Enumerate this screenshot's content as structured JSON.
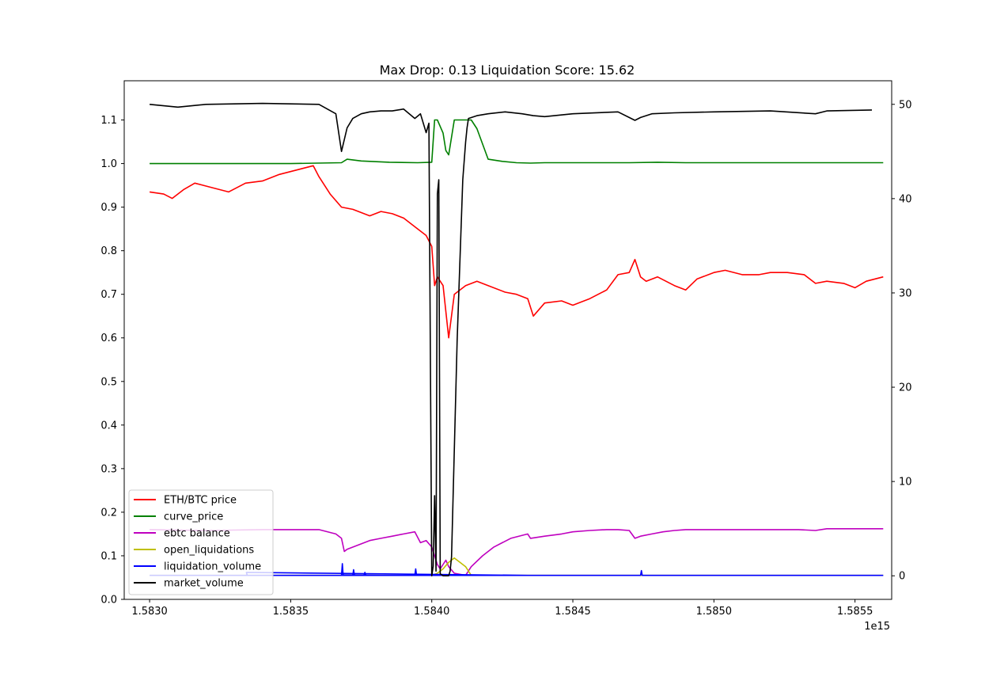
{
  "chart_data": {
    "type": "line",
    "title": "Max Drop: 0.13 Liquidation Score: 15.62",
    "x_offset_label": "1e15",
    "xlim": [
      1.58291,
      1.58563
    ],
    "ylim_left": [
      0.0,
      1.19
    ],
    "ylim_right": [
      -2.5,
      52.5
    ],
    "x_ticks": [
      1.583,
      1.5835,
      1.584,
      1.5845,
      1.585,
      1.5855
    ],
    "x_tick_labels": [
      "1.5830",
      "1.5835",
      "1.5840",
      "1.5845",
      "1.5850",
      "1.5855"
    ],
    "y_left_ticks": [
      0.0,
      0.1,
      0.2,
      0.3,
      0.4,
      0.5,
      0.6,
      0.7,
      0.8,
      0.9,
      1.0,
      1.1
    ],
    "y_left_tick_labels": [
      "0.0",
      "0.1",
      "0.2",
      "0.3",
      "0.4",
      "0.5",
      "0.6",
      "0.7",
      "0.8",
      "0.9",
      "1.0",
      "1.1"
    ],
    "y_right_ticks": [
      0,
      10,
      20,
      30,
      40,
      50
    ],
    "y_right_tick_labels": [
      "0",
      "10",
      "20",
      "30",
      "40",
      "50"
    ],
    "grid": false,
    "legend_position": "lower-left",
    "series": [
      {
        "name": "ETH/BTC price",
        "color": "#ff0000",
        "axis": "left",
        "x": [
          1.583,
          1.58305,
          1.58308,
          1.58312,
          1.58316,
          1.58322,
          1.58328,
          1.58334,
          1.5834,
          1.58346,
          1.58352,
          1.58358,
          1.5836,
          1.58364,
          1.58368,
          1.58372,
          1.58378,
          1.58382,
          1.58386,
          1.5839,
          1.58394,
          1.58398,
          1.584,
          1.58401,
          1.58402,
          1.58404,
          1.58406,
          1.58408,
          1.58412,
          1.58416,
          1.5842,
          1.58426,
          1.5843,
          1.58434,
          1.58436,
          1.5844,
          1.58446,
          1.5845,
          1.58456,
          1.58462,
          1.58466,
          1.5847,
          1.58472,
          1.58474,
          1.58476,
          1.5848,
          1.58486,
          1.5849,
          1.58494,
          1.585,
          1.58504,
          1.5851,
          1.58516,
          1.5852,
          1.58526,
          1.58532,
          1.58536,
          1.5854,
          1.58546,
          1.5855,
          1.58554,
          1.5856
        ],
        "values": [
          0.935,
          0.93,
          0.92,
          0.94,
          0.955,
          0.945,
          0.935,
          0.955,
          0.96,
          0.975,
          0.985,
          0.995,
          0.97,
          0.93,
          0.9,
          0.895,
          0.88,
          0.89,
          0.885,
          0.875,
          0.855,
          0.835,
          0.81,
          0.72,
          0.74,
          0.72,
          0.6,
          0.7,
          0.72,
          0.73,
          0.72,
          0.705,
          0.7,
          0.69,
          0.65,
          0.68,
          0.685,
          0.675,
          0.69,
          0.71,
          0.745,
          0.75,
          0.78,
          0.74,
          0.73,
          0.74,
          0.72,
          0.71,
          0.735,
          0.75,
          0.755,
          0.745,
          0.745,
          0.75,
          0.75,
          0.745,
          0.725,
          0.73,
          0.725,
          0.715,
          0.73,
          0.74
        ]
      },
      {
        "name": "curve_price",
        "color": "#008000",
        "axis": "left",
        "x": [
          1.583,
          1.5835,
          1.58368,
          1.5837,
          1.58375,
          1.58385,
          1.58395,
          1.584,
          1.58401,
          1.58402,
          1.58404,
          1.58405,
          1.58406,
          1.58408,
          1.5841,
          1.58412,
          1.58414,
          1.58416,
          1.5842,
          1.58425,
          1.5843,
          1.58435,
          1.5844,
          1.5845,
          1.5847,
          1.5848,
          1.5849,
          1.5856
        ],
        "values": [
          1.0,
          1.0,
          1.002,
          1.01,
          1.006,
          1.003,
          1.002,
          1.003,
          1.1,
          1.1,
          1.07,
          1.03,
          1.02,
          1.1,
          1.1,
          1.1,
          1.1,
          1.08,
          1.01,
          1.005,
          1.002,
          1.001,
          1.002,
          1.002,
          1.002,
          1.003,
          1.002,
          1.002
        ]
      },
      {
        "name": "ebtc balance",
        "color": "#bf00bf",
        "axis": "left",
        "x": [
          1.583,
          1.5832,
          1.5834,
          1.5836,
          1.58366,
          1.58368,
          1.58369,
          1.5837,
          1.58374,
          1.58378,
          1.58382,
          1.58386,
          1.5839,
          1.58394,
          1.58396,
          1.58398,
          1.584,
          1.58401,
          1.58402,
          1.58403,
          1.58405,
          1.58406,
          1.58408,
          1.58412,
          1.58414,
          1.58418,
          1.58422,
          1.58428,
          1.58434,
          1.58435,
          1.5844,
          1.58446,
          1.5845,
          1.58456,
          1.58462,
          1.58466,
          1.5847,
          1.58472,
          1.58474,
          1.58478,
          1.58482,
          1.58486,
          1.5849,
          1.585,
          1.5851,
          1.5852,
          1.5853,
          1.58536,
          1.5854,
          1.5856
        ],
        "values": [
          0.16,
          0.158,
          0.16,
          0.16,
          0.15,
          0.14,
          0.11,
          0.115,
          0.125,
          0.135,
          0.14,
          0.145,
          0.15,
          0.155,
          0.13,
          0.135,
          0.12,
          0.1,
          0.08,
          0.07,
          0.09,
          0.075,
          0.06,
          0.055,
          0.075,
          0.1,
          0.12,
          0.14,
          0.15,
          0.14,
          0.145,
          0.15,
          0.155,
          0.158,
          0.16,
          0.16,
          0.158,
          0.14,
          0.145,
          0.15,
          0.155,
          0.158,
          0.16,
          0.16,
          0.16,
          0.16,
          0.16,
          0.158,
          0.162,
          0.162
        ]
      },
      {
        "name": "open_liquidations",
        "color": "#bfbf00",
        "axis": "left",
        "x": [
          1.583,
          1.584,
          1.58402,
          1.58404,
          1.58406,
          1.58408,
          1.5841,
          1.58412,
          1.58414,
          1.5856
        ],
        "values": [
          0.055,
          0.055,
          0.06,
          0.07,
          0.085,
          0.095,
          0.085,
          0.075,
          0.055,
          0.055
        ]
      },
      {
        "name": "liquidation_volume",
        "color": "#0000ff",
        "axis": "left",
        "x": [
          1.583,
          1.58368,
          1.583683,
          1.583686,
          1.58372,
          1.583723,
          1.583726,
          1.58376,
          1.583763,
          1.583766,
          1.58394,
          1.583943,
          1.583946,
          1.58434,
          1.583343,
          1.583346,
          1.58474,
          1.584743,
          1.584746,
          1.5856
        ],
        "values": [
          0.055,
          0.055,
          0.082,
          0.055,
          0.055,
          0.068,
          0.055,
          0.055,
          0.062,
          0.055,
          0.055,
          0.07,
          0.055,
          0.055,
          0.062,
          0.055,
          0.055,
          0.066,
          0.055,
          0.055
        ]
      },
      {
        "name": "market_volume",
        "color": "#000000",
        "axis": "right",
        "x": [
          1.583,
          1.5831,
          1.5832,
          1.5834,
          1.5836,
          1.58366,
          1.58368,
          1.5837,
          1.58372,
          1.58375,
          1.58378,
          1.58382,
          1.58386,
          1.5839,
          1.58394,
          1.58396,
          1.58398,
          1.58399,
          1.584,
          1.584005,
          1.58401,
          1.584015,
          1.58402,
          1.584025,
          1.58403,
          1.58404,
          1.58405,
          1.58406,
          1.584065,
          1.58407,
          1.58409,
          1.58411,
          1.58412,
          1.584125,
          1.58413,
          1.58416,
          1.5842,
          1.58426,
          1.58432,
          1.58436,
          1.5844,
          1.5845,
          1.58466,
          1.58472,
          1.58474,
          1.58478,
          1.58486,
          1.585,
          1.5852,
          1.58536,
          1.5854,
          1.58556
        ],
        "values": [
          50.0,
          49.7,
          50.0,
          50.1,
          50.0,
          49.0,
          45.0,
          47.5,
          48.5,
          49.0,
          49.2,
          49.3,
          49.3,
          49.5,
          48.5,
          49.0,
          47.0,
          48.0,
          0.0,
          1.0,
          8.5,
          0.5,
          40.5,
          42.0,
          0.2,
          0.0,
          0.0,
          0.0,
          0.5,
          2.0,
          25.0,
          42.0,
          46.0,
          47.5,
          48.5,
          48.8,
          49.0,
          49.2,
          49.0,
          48.8,
          48.7,
          49.0,
          49.2,
          48.3,
          48.6,
          49.0,
          49.1,
          49.2,
          49.3,
          49.0,
          49.3,
          49.4
        ]
      }
    ]
  }
}
